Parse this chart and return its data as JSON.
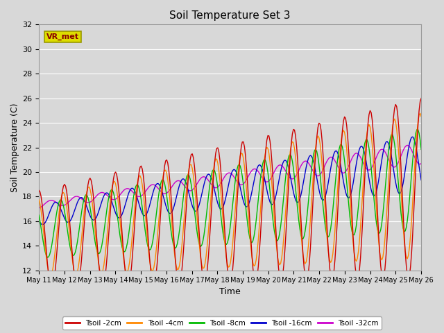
{
  "title": "Soil Temperature Set 3",
  "xlabel": "Time",
  "ylabel": "Soil Temperature (C)",
  "ylim": [
    12,
    32
  ],
  "background_color": "#d8d8d8",
  "grid_color": "#ffffff",
  "legend_labels": [
    "Tsoil -2cm",
    "Tsoil -4cm",
    "Tsoil -8cm",
    "Tsoil -16cm",
    "Tsoil -32cm"
  ],
  "line_colors": [
    "#cc0000",
    "#ff8800",
    "#00bb00",
    "#0000cc",
    "#cc00cc"
  ],
  "annotation_label": "VR_met",
  "annotation_box_color": "#dddd00",
  "annotation_text_color": "#880000",
  "x_tick_labels": [
    "May 11",
    "May 12",
    "May 13",
    "May 14",
    "May 15",
    "May 16",
    "May 17",
    "May 18",
    "May 19",
    "May 20",
    "May 21",
    "May 22",
    "May 23",
    "May 24",
    "May 25",
    "May 26"
  ]
}
